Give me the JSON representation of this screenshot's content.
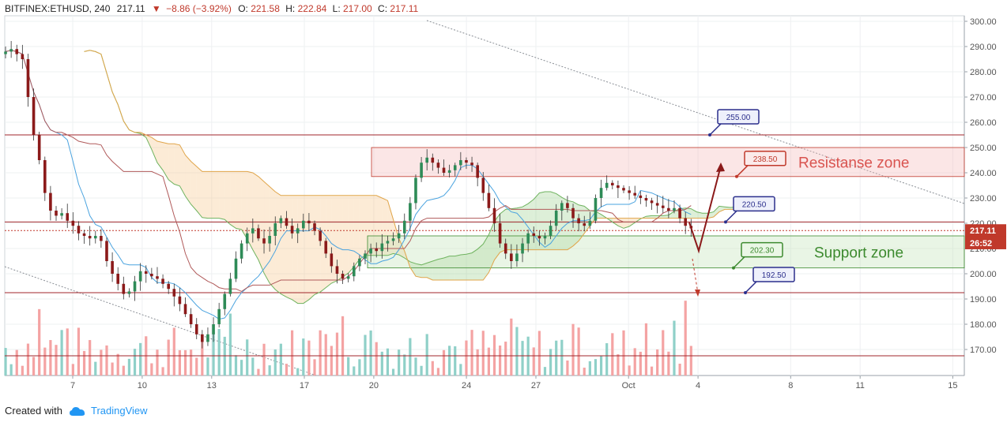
{
  "header": {
    "symbol": "BITFINEX:ETHUSD, 240",
    "last": "217.11",
    "change_arrow": "▼",
    "change": "−8.86 (−3.92%)",
    "o_label": "O:",
    "o_value": "221.58",
    "h_label": "H:",
    "h_value": "222.84",
    "l_label": "L:",
    "l_value": "217.00",
    "c_label": "C:",
    "c_value": "217.11"
  },
  "footer": {
    "created_with": "Created with",
    "brand": "TradingView"
  },
  "chart_data": {
    "type": "candlestick",
    "y_axis": {
      "range": [
        160,
        300
      ],
      "ticks": [
        "300.00",
        "290.00",
        "280.00",
        "270.00",
        "260.00",
        "250.00",
        "240.00",
        "230.00",
        "220.00",
        "210.00",
        "200.00",
        "190.00",
        "180.00",
        "170.00"
      ]
    },
    "x_axis": {
      "ticks": [
        {
          "label": "7",
          "day": 7
        },
        {
          "label": "10",
          "day": 10
        },
        {
          "label": "13",
          "day": 13
        },
        {
          "label": "17",
          "day": 17
        },
        {
          "label": "20",
          "day": 20
        },
        {
          "label": "24",
          "day": 24
        },
        {
          "label": "27",
          "day": 27
        },
        {
          "label": "Oct",
          "day": 31
        },
        {
          "label": "4",
          "day": 34
        },
        {
          "label": "8",
          "day": 38
        },
        {
          "label": "11",
          "day": 41
        },
        {
          "label": "15",
          "day": 45
        }
      ]
    },
    "price_labels": [
      {
        "text": "217.11",
        "value": 217.11,
        "color": "#c0392b"
      },
      {
        "text": "26:52",
        "value": 212.2,
        "color": "#c0392b"
      }
    ],
    "zones": [
      {
        "name": "Resistanse zone",
        "from": 238.5,
        "to": 250,
        "color": "#f4b6b6"
      },
      {
        "name": "Support zone",
        "from": 202.3,
        "to": 215,
        "color": "#bfe3b4"
      }
    ],
    "level_callouts": [
      {
        "text": "255.00",
        "value": 255.0,
        "style": "navy"
      },
      {
        "text": "238.50",
        "value": 238.5,
        "style": "red"
      },
      {
        "text": "220.50",
        "value": 220.5,
        "style": "navy"
      },
      {
        "text": "202.30",
        "value": 202.3,
        "style": "green"
      },
      {
        "text": "192.50",
        "value": 192.5,
        "style": "navy"
      }
    ],
    "horizontal_lines": [
      255.0,
      220.5,
      192.5,
      167.5
    ],
    "current_price": 217.11,
    "closes": [
      288,
      289,
      287,
      285,
      270,
      255,
      245,
      232,
      225,
      223,
      224,
      221,
      219,
      216,
      215,
      214,
      215,
      213,
      205,
      200,
      196,
      192,
      193,
      197,
      201,
      200,
      199,
      198,
      196,
      194,
      191,
      188,
      184,
      180,
      176,
      173,
      176,
      180,
      186,
      192,
      198,
      206,
      212,
      216,
      218,
      214,
      212,
      215,
      220,
      222,
      219,
      216,
      218,
      221,
      220,
      217,
      213,
      208,
      203,
      200,
      198,
      199,
      203,
      206,
      208,
      210,
      209,
      212,
      213,
      214,
      216,
      221,
      228,
      238,
      244,
      246,
      244,
      242,
      240,
      241,
      243,
      245,
      244,
      243,
      238,
      232,
      226,
      220,
      212,
      208,
      205,
      208,
      212,
      216,
      215,
      214,
      215,
      219,
      225,
      228,
      226,
      222,
      220,
      219,
      221,
      230,
      234,
      236,
      235,
      234,
      233,
      232,
      231,
      230,
      229,
      228,
      227,
      226,
      225,
      226,
      222,
      219,
      218
    ]
  }
}
